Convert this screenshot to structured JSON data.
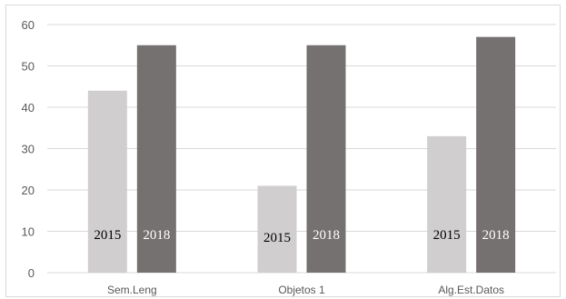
{
  "chart_data": {
    "type": "bar",
    "title": "",
    "xlabel": "",
    "ylabel": "",
    "categories": [
      "Sem.Leng",
      "Objetos 1",
      "Alg.Est.Datos"
    ],
    "series": [
      {
        "values": [
          44,
          21,
          33
        ],
        "color": "#d0cece",
        "label": "2015"
      },
      {
        "values": [
          55,
          55,
          57
        ],
        "color": "#767171",
        "label": "2018"
      }
    ],
    "ylim": [
      0,
      60
    ],
    "yticks": [
      0,
      10,
      20,
      30,
      40,
      50,
      60
    ],
    "grid": true,
    "legend": "none"
  }
}
